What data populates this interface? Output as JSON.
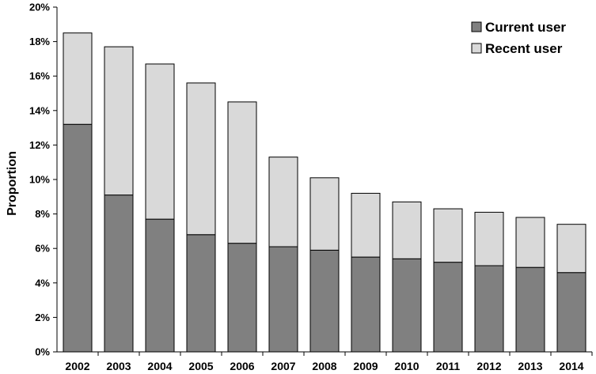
{
  "chart_data": {
    "type": "bar",
    "stacked": true,
    "title": "",
    "xlabel": "",
    "ylabel": "Proportion",
    "ylim": [
      0,
      20
    ],
    "y_tick_step": 2,
    "y_tick_suffix": "%",
    "grid": false,
    "legend_position": "top-right",
    "categories": [
      "2002",
      "2003",
      "2004",
      "2005",
      "2006",
      "2007",
      "2008",
      "2009",
      "2010",
      "2011",
      "2012",
      "2013",
      "2014"
    ],
    "series": [
      {
        "name": "Current user",
        "color": "#808080",
        "values": [
          13.2,
          9.1,
          7.7,
          6.8,
          6.3,
          6.1,
          5.9,
          5.5,
          5.4,
          5.2,
          5.0,
          4.9,
          4.6
        ]
      },
      {
        "name": "Recent user",
        "color": "#d9d9d9",
        "values": [
          5.3,
          8.6,
          9.0,
          8.8,
          8.2,
          5.2,
          4.2,
          3.7,
          3.3,
          3.1,
          3.1,
          2.9,
          2.8
        ]
      }
    ]
  }
}
